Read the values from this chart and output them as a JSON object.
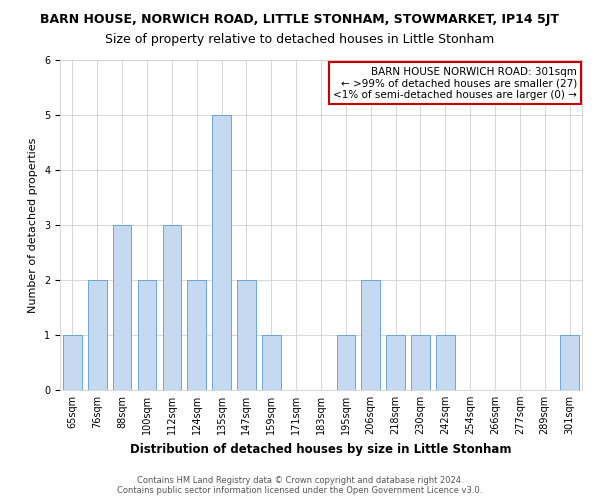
{
  "title": "BARN HOUSE, NORWICH ROAD, LITTLE STONHAM, STOWMARKET, IP14 5JT",
  "subtitle": "Size of property relative to detached houses in Little Stonham",
  "xlabel": "Distribution of detached houses by size in Little Stonham",
  "ylabel": "Number of detached properties",
  "categories": [
    "65sqm",
    "76sqm",
    "88sqm",
    "100sqm",
    "112sqm",
    "124sqm",
    "135sqm",
    "147sqm",
    "159sqm",
    "171sqm",
    "183sqm",
    "195sqm",
    "206sqm",
    "218sqm",
    "230sqm",
    "242sqm",
    "254sqm",
    "266sqm",
    "277sqm",
    "289sqm",
    "301sqm"
  ],
  "values": [
    1,
    2,
    3,
    2,
    3,
    2,
    5,
    2,
    1,
    0,
    0,
    1,
    2,
    1,
    1,
    1,
    0,
    0,
    0,
    0,
    1
  ],
  "bar_color": "#c5d9f1",
  "bar_edge_color": "#5b9bd5",
  "annotation_title": "BARN HOUSE NORWICH ROAD: 301sqm",
  "annotation_line1": "← >99% of detached houses are smaller (27)",
  "annotation_line2": "<1% of semi-detached houses are larger (0) →",
  "annotation_box_edge": "#cc0000",
  "ylim": [
    0,
    6
  ],
  "yticks": [
    0,
    1,
    2,
    3,
    4,
    5,
    6
  ],
  "footer_line1": "Contains HM Land Registry data © Crown copyright and database right 2024.",
  "footer_line2": "Contains public sector information licensed under the Open Government Licence v3.0.",
  "background_color": "#ffffff",
  "grid_color": "#d0d0d0",
  "title_fontsize": 9,
  "subtitle_fontsize": 9,
  "tick_fontsize": 7,
  "ylabel_fontsize": 8,
  "xlabel_fontsize": 8.5,
  "annotation_fontsize": 7.5,
  "footer_fontsize": 6
}
